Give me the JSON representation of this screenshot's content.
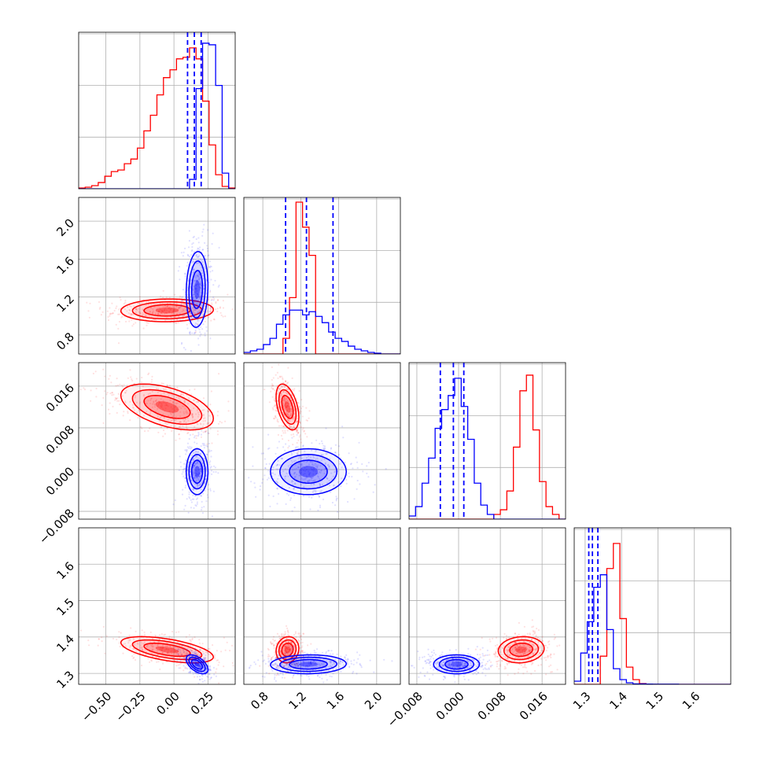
{
  "chart_data": {
    "type": "scatter",
    "subtype": "corner-plot",
    "grid": true,
    "params": [
      {
        "range": [
          -0.7,
          0.45
        ],
        "ticks": [
          -0.5,
          -0.25,
          0.0,
          0.25
        ],
        "tick_labels": [
          "−0.50",
          "−0.25",
          "0.00",
          "0.25"
        ]
      },
      {
        "range": [
          0.6,
          2.25
        ],
        "ticks": [
          0.8,
          1.2,
          1.6,
          2.0
        ],
        "tick_labels": [
          "0.8",
          "1.2",
          "1.6",
          "2.0"
        ]
      },
      {
        "range": [
          -0.0095,
          0.0205
        ],
        "ticks": [
          -0.008,
          0.0,
          0.008,
          0.016
        ],
        "tick_labels": [
          "−0.008",
          "0.000",
          "0.008",
          "0.016"
        ]
      },
      {
        "range": [
          1.27,
          1.7
        ],
        "ticks": [
          1.3,
          1.4,
          1.5,
          1.6
        ],
        "tick_labels": [
          "1.3",
          "1.4",
          "1.5",
          "1.6"
        ]
      }
    ],
    "series": [
      {
        "color": "#ff0000",
        "mean": [
          -0.05,
          1.06,
          0.012,
          1.365
        ],
        "std": [
          0.17,
          0.06,
          0.0022,
          0.018
        ],
        "corr": [
          [
            1,
            0.05,
            -0.5,
            -0.55
          ],
          [
            0.05,
            1,
            -0.45,
            0.1
          ],
          [
            -0.5,
            -0.45,
            1,
            0.1
          ],
          [
            -0.55,
            0.1,
            0.1,
            1
          ]
        ]
      },
      {
        "color": "#0000ff",
        "mean": [
          0.17,
          1.28,
          -0.0004,
          1.325
        ],
        "std": [
          0.04,
          0.2,
          0.0022,
          0.013
        ],
        "corr": [
          [
            1,
            0.1,
            0,
            -0.55
          ],
          [
            0.1,
            1,
            0,
            0.05
          ],
          [
            0,
            0,
            1,
            0
          ],
          [
            -0.55,
            0.05,
            0,
            1
          ]
        ]
      }
    ],
    "quantile_lines": {
      "color": "#0000ff",
      "values": [
        [
          0.1,
          0.15,
          0.2
        ],
        [
          1.04,
          1.26,
          1.54
        ],
        [
          -0.0035,
          -0.001,
          0.001
        ],
        [
          1.31,
          1.32,
          1.335
        ]
      ]
    },
    "histograms": [
      {
        "red": [
          0.5,
          1,
          2,
          4,
          8,
          11,
          12,
          16,
          19,
          26,
          37,
          47,
          60,
          71,
          76,
          83,
          84,
          90,
          83,
          56,
          28,
          9,
          1.5,
          0.5
        ],
        "blue": [
          0,
          0,
          0,
          0,
          0,
          0,
          0,
          0,
          0,
          0,
          0,
          0,
          0,
          0,
          0,
          0,
          0,
          6,
          64,
          93,
          92,
          66,
          10,
          0
        ]
      },
      {
        "red": [
          0,
          0,
          0,
          0,
          0,
          0,
          10,
          36,
          97,
          81,
          63,
          0,
          0,
          0,
          0,
          0,
          0,
          0,
          0,
          0,
          0,
          0,
          0,
          0
        ],
        "blue": [
          1,
          2,
          3,
          6,
          10,
          19,
          25,
          28,
          28,
          25,
          27,
          24,
          20,
          14,
          10,
          8,
          5,
          3,
          2,
          1,
          0.5,
          0,
          0,
          0
        ]
      },
      {
        "red": [
          0,
          0,
          0,
          0,
          0,
          0,
          0,
          0,
          0,
          0,
          0,
          0,
          0,
          3,
          6,
          18,
          46,
          82,
          92,
          57,
          24,
          8,
          3,
          0
        ],
        "blue": [
          2,
          8,
          23,
          39,
          58,
          70,
          79,
          90,
          72,
          51,
          23,
          9,
          3,
          0,
          0,
          0,
          0,
          0,
          0,
          0,
          0,
          0,
          0,
          0
        ]
      },
      {
        "red": [
          0,
          0,
          0,
          0,
          18,
          74,
          90,
          42,
          11,
          3,
          0.5,
          0,
          0,
          0,
          0,
          0,
          0,
          0,
          0,
          0,
          0,
          0,
          0,
          0
        ],
        "blue": [
          2,
          20,
          40,
          62,
          70,
          35,
          10,
          3,
          1,
          0.3,
          0.3,
          0.2,
          0.1,
          0.1,
          0.1,
          0.1,
          0,
          0,
          0,
          0,
          0,
          0,
          0,
          0
        ]
      }
    ]
  }
}
